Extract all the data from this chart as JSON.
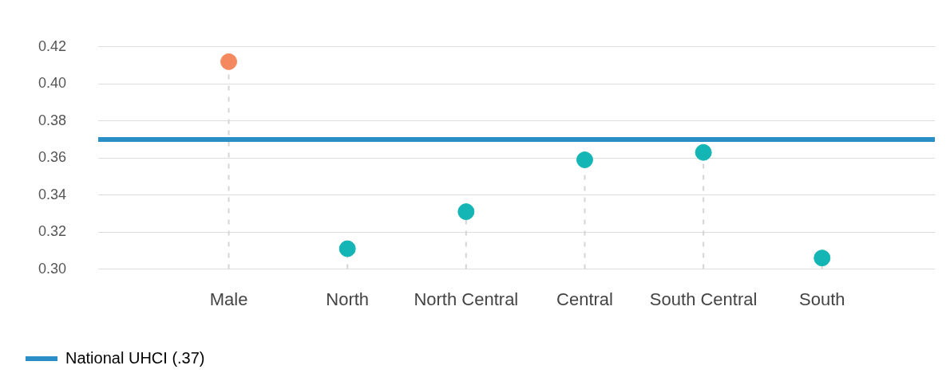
{
  "chart_data": {
    "type": "lollipop",
    "categories": [
      "Male",
      "North",
      "North Central",
      "Central",
      "South Central",
      "South"
    ],
    "values": [
      0.412,
      0.311,
      0.331,
      0.359,
      0.363,
      0.306
    ],
    "colors": [
      "#f4895f",
      "#14b5b5",
      "#14b5b5",
      "#14b5b5",
      "#14b5b5",
      "#14b5b5"
    ],
    "ylim": [
      0.3,
      0.42
    ],
    "yticks": [
      {
        "value": 0.3,
        "label": "0.30"
      },
      {
        "value": 0.32,
        "label": "0.32"
      },
      {
        "value": 0.34,
        "label": "0.34"
      },
      {
        "value": 0.36,
        "label": "0.36"
      },
      {
        "value": 0.38,
        "label": "0.38"
      },
      {
        "value": 0.4,
        "label": "0.40"
      },
      {
        "value": 0.42,
        "label": "0.42"
      }
    ],
    "ref_lines": [
      {
        "axis": "y",
        "value": 0.37,
        "label": "National UHCI (.37)",
        "color": "#2a8fc7"
      }
    ],
    "grid": "y",
    "legend": "bottom left",
    "marker": "circle",
    "line_style": "dashed"
  }
}
